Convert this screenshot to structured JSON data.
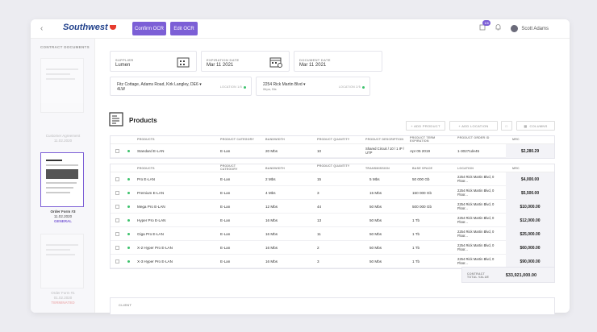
{
  "header": {
    "logo_text": "Southwest",
    "confirm_label": "Confirm OCR",
    "edit_label": "Edit OCR",
    "notif_count": "1/6",
    "user_name": "Scott Adams"
  },
  "sidebar": {
    "title": "CONTRACT DOCUMENTS",
    "docs": [
      {
        "name": "Customer Agreement",
        "date": "11.02.2020",
        "status": ""
      },
      {
        "name": "Order Form #3",
        "date": "11.02.2020",
        "status": "GENERAL"
      },
      {
        "name": "Order Form #1",
        "date": "01.02.2020",
        "status": "TERMINATED"
      }
    ]
  },
  "summary": {
    "supplier_label": "SUPPLIER",
    "supplier_value": "Lumen",
    "expiration_label": "EXPIRATION DATE",
    "expiration_value": "Mar 11 2021",
    "document_label": "DOCUMENT DATE",
    "document_value": "Mar 11 2021"
  },
  "locations": [
    {
      "address": "Fitz Cottage, Adams Road, Kirk Langley, DE6",
      "address2": "4LW",
      "sub": "",
      "tag": "LOCATION 1/5"
    },
    {
      "address": "2254 Rick Martin Blvd",
      "address2": "",
      "sub": "Ilfrpa, Bls",
      "tag": "LOCATION 2/5"
    }
  ],
  "products": {
    "title": "Products",
    "add_product": "+ ADD PRODUCT",
    "add_location": "+ ADD LOCATION",
    "columns": "COLUMNS"
  },
  "table1": {
    "headers": [
      "PRODUCTS",
      "PRODUCT CATEGORY",
      "BANDWIDTH",
      "PRODUCT QUANTITY",
      "PRODUCT DESCRIPTION",
      "PRODUCT TERM EXPIRATION",
      "PRODUCT ORDER ID",
      "MRC"
    ],
    "rows": [
      {
        "product": "Standard E-LAN",
        "category": "E-Lan",
        "bandwidth": "20 Mbs",
        "qty": "10",
        "desc": "Shared Circuit / 10 / 1 IP / UTP",
        "term": "Apr 05 2019",
        "order": "1-30271de45",
        "mrc": "$2,280.29"
      }
    ]
  },
  "table2": {
    "headers": [
      "PRODUCTS",
      "PRODUCT CATEGORY",
      "BANDWIDTH",
      "PRODUCT QUANTITY",
      "TRANSMISSION",
      "BASE SPACE",
      "LOCATION",
      "MRC"
    ],
    "rows": [
      {
        "product": "Pro E-LAN",
        "category": "E-Lan",
        "bandwidth": "2 Mbs",
        "qty": "15",
        "trans": "5 Mbs",
        "space": "50 000 Gb",
        "location": "2254 Rick Martin Blvd, 0 Floor...",
        "mrc": "$4,000.00"
      },
      {
        "product": "Premium E-LAN",
        "category": "E-Lan",
        "bandwidth": "4 Mbs",
        "qty": "3",
        "trans": "15 Mbs",
        "space": "150 000 Gb",
        "location": "2254 Rick Martin Blvd, 0 Floor...",
        "mrc": "$5,500.00"
      },
      {
        "product": "Mega Pro E-LAN",
        "category": "E-Lan",
        "bandwidth": "12 Mbs",
        "qty": "44",
        "trans": "50 Mbs",
        "space": "500 000 Gb",
        "location": "2254 Rick Martin Blvd, 0 Floor...",
        "mrc": "$10,000.00"
      },
      {
        "product": "Hyper Pro E-LAN",
        "category": "E-Lan",
        "bandwidth": "16 Mbs",
        "qty": "13",
        "trans": "50 Mbs",
        "space": "1 Tb",
        "location": "2254 Rick Martin Blvd, 0 Floor...",
        "mrc": "$12,000.00"
      },
      {
        "product": "Giga Pro E-LAN",
        "category": "E-Lan",
        "bandwidth": "16 Mbs",
        "qty": "11",
        "trans": "50 Mbs",
        "space": "1 Tb",
        "location": "2254 Rick Martin Blvd, 0 Floor...",
        "mrc": "$25,000.00"
      },
      {
        "product": "X-2 Hyper Pro E-LAN",
        "category": "E-Lan",
        "bandwidth": "16 Mbs",
        "qty": "2",
        "trans": "50 Mbs",
        "space": "1 Tb",
        "location": "2254 Rick Martin Blvd, 0 Floor...",
        "mrc": "$60,000.00"
      },
      {
        "product": "X-3 Hyper Pro E-LAN",
        "category": "E-Lan",
        "bandwidth": "16 Mbs",
        "qty": "3",
        "trans": "50 Mbs",
        "space": "1 Tb",
        "location": "2254 Rick Martin Blvd, 0 Floor...",
        "mrc": "$90,000.00"
      }
    ]
  },
  "total": {
    "label1": "CONTRACT",
    "label2": "TOTAL VALUE",
    "value": "$33,921,000.00"
  },
  "client": {
    "label": "CLIENT"
  }
}
